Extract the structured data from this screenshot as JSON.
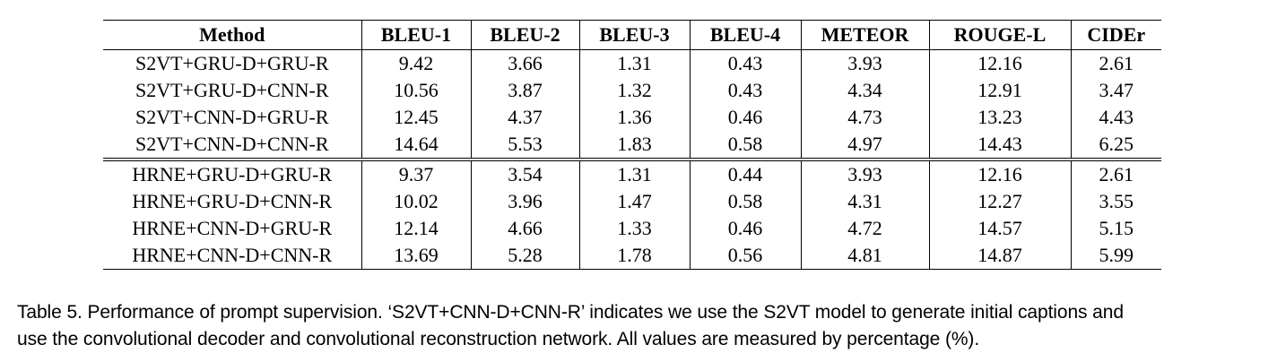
{
  "table": {
    "headers": [
      "Method",
      "BLEU-1",
      "BLEU-2",
      "BLEU-3",
      "BLEU-4",
      "METEOR",
      "ROUGE-L",
      "CIDEr"
    ],
    "groups": [
      {
        "rows": [
          [
            "S2VT+GRU-D+GRU-R",
            "9.42",
            "3.66",
            "1.31",
            "0.43",
            "3.93",
            "12.16",
            "2.61"
          ],
          [
            "S2VT+GRU-D+CNN-R",
            "10.56",
            "3.87",
            "1.32",
            "0.43",
            "4.34",
            "12.91",
            "3.47"
          ],
          [
            "S2VT+CNN-D+GRU-R",
            "12.45",
            "4.37",
            "1.36",
            "0.46",
            "4.73",
            "13.23",
            "4.43"
          ],
          [
            "S2VT+CNN-D+CNN-R",
            "14.64",
            "5.53",
            "1.83",
            "0.58",
            "4.97",
            "14.43",
            "6.25"
          ]
        ]
      },
      {
        "rows": [
          [
            "HRNE+GRU-D+GRU-R",
            "9.37",
            "3.54",
            "1.31",
            "0.44",
            "3.93",
            "12.16",
            "2.61"
          ],
          [
            "HRNE+GRU-D+CNN-R",
            "10.02",
            "3.96",
            "1.47",
            "0.58",
            "4.31",
            "12.27",
            "3.55"
          ],
          [
            "HRNE+CNN-D+GRU-R",
            "12.14",
            "4.66",
            "1.33",
            "0.46",
            "4.72",
            "14.57",
            "5.15"
          ],
          [
            "HRNE+CNN-D+CNN-R",
            "13.69",
            "5.28",
            "1.78",
            "0.56",
            "4.81",
            "14.87",
            "5.99"
          ]
        ]
      }
    ]
  },
  "caption": {
    "line1": "Table 5. Performance of prompt supervision. ‘S2VT+CNN-D+CNN-R’ indicates we use the S2VT model to generate initial captions and",
    "line2": "use the convolutional decoder and convolutional reconstruction network. All values are measured by percentage (%)."
  }
}
